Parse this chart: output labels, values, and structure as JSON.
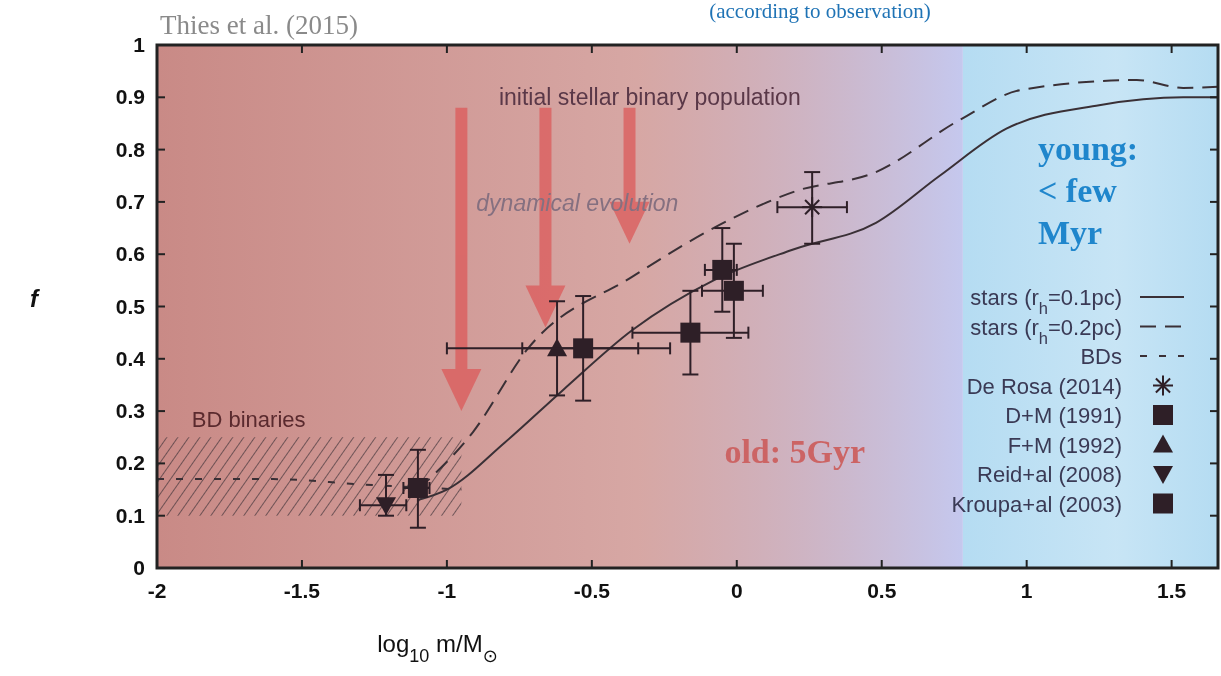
{
  "chart_data": {
    "type": "line",
    "xlabel": "log$_{10}$ m/M$_{⊙}$",
    "ylabel": "f",
    "xlim": [
      -2,
      1.66
    ],
    "ylim": [
      0,
      1
    ],
    "xticks": [
      -2,
      -1.5,
      -1,
      -0.5,
      0,
      0.5,
      1,
      1.5
    ],
    "yticks": [
      0,
      0.1,
      0.2,
      0.3,
      0.4,
      0.5,
      0.6,
      0.7,
      0.8,
      0.9,
      1
    ],
    "legend": "bottom right",
    "grid": false,
    "bands": [
      {
        "axis": "x",
        "from": -2,
        "to": 0.78,
        "label": "old:  5Gyr",
        "color": "#c98a86"
      },
      {
        "axis": "x",
        "from": 0.78,
        "to": 1.66,
        "label": "young: < few Myr",
        "color": "#b5dcf2"
      }
    ],
    "annotations": [
      "Thies et al. (2015)",
      "(according to observation)",
      "initial stellar binary population",
      "dynamical evolution",
      "BD binaries"
    ],
    "series": [
      {
        "name": "stars (r$_{h}$=0.1pc)",
        "color": "#3a3036",
        "line_style": "solid",
        "x": [
          -1.1,
          -1.0,
          -0.8,
          -0.6,
          -0.36,
          -0.08,
          0.2,
          0.48,
          0.7,
          0.93,
          1.25,
          1.54,
          1.66
        ],
        "values": [
          0.13,
          0.15,
          0.24,
          0.34,
          0.455,
          0.55,
          0.61,
          0.66,
          0.75,
          0.84,
          0.885,
          0.9,
          0.9
        ]
      },
      {
        "name": "stars (r$_{h}$=0.2pc)",
        "color": "#3a3036",
        "line_style": "dashed",
        "x": [
          -1.1,
          -0.91,
          -0.72,
          -0.36,
          -0.01,
          0.2,
          0.48,
          0.77,
          0.98,
          1.38,
          1.54,
          1.66
        ],
        "values": [
          0.15,
          0.26,
          0.42,
          0.557,
          0.67,
          0.72,
          0.757,
          0.857,
          0.914,
          0.933,
          0.918,
          0.92
        ]
      },
      {
        "name": "BDs",
        "color": "#3a3036",
        "line_style": "dotted",
        "x": [
          -2,
          -1.6,
          -1.3,
          -0.95
        ],
        "values": [
          0.17,
          0.17,
          0.16,
          0.15
        ],
        "lower": [
          0.1,
          0.1,
          0.1,
          0.1
        ],
        "upper": [
          0.25,
          0.25,
          0.25,
          0.25
        ]
      },
      {
        "type": "scatter",
        "name": "De Rosa (2014)",
        "color": "#2e1f27",
        "marker": "cross",
        "x": [
          0.26
        ],
        "values": [
          0.69
        ],
        "errors": [
          [
            0.62,
            0.757
          ]
        ],
        "xerrors": [
          [
            0.14,
            0.38
          ]
        ]
      },
      {
        "type": "scatter",
        "name": "D+M (1991)",
        "color": "#2e1f27",
        "marker": "square",
        "x": [
          -0.05
        ],
        "values": [
          0.57
        ],
        "errors": [
          [
            0.49,
            0.65
          ]
        ],
        "xerrors": [
          [
            -0.11,
            0.0
          ]
        ]
      },
      {
        "type": "scatter",
        "name": "F+M (1992)",
        "color": "#2e1f27",
        "marker": "triangle",
        "x": [
          -0.62
        ],
        "values": [
          0.42
        ],
        "errors": [
          [
            0.33,
            0.51
          ]
        ],
        "xerrors": [
          [
            -1.0,
            -0.34
          ]
        ]
      },
      {
        "type": "scatter",
        "name": "Reid+al (2008)",
        "color": "#2e1f27",
        "marker": "triangle-down",
        "x": [
          -1.21
        ],
        "values": [
          0.12
        ],
        "errors": [
          [
            0.1,
            0.178
          ]
        ],
        "xerrors": [
          [
            -1.3,
            -1.14
          ]
        ]
      },
      {
        "type": "scatter",
        "name": "Kroupa+al (2003)",
        "color": "#2e1f27",
        "marker": "square",
        "x": [
          -1.1,
          -0.53,
          -0.16,
          -0.01
        ],
        "values": [
          0.153,
          0.42,
          0.45,
          0.53
        ],
        "errors": [
          [
            0.077,
            0.226
          ],
          [
            0.32,
            0.52
          ],
          [
            0.37,
            0.53
          ],
          [
            0.44,
            0.62
          ]
        ],
        "xerrors": [
          [
            -1.15,
            -1.06
          ],
          [
            -0.74,
            -0.23
          ],
          [
            -0.36,
            0.04
          ],
          [
            -0.12,
            0.09
          ]
        ]
      }
    ]
  }
}
